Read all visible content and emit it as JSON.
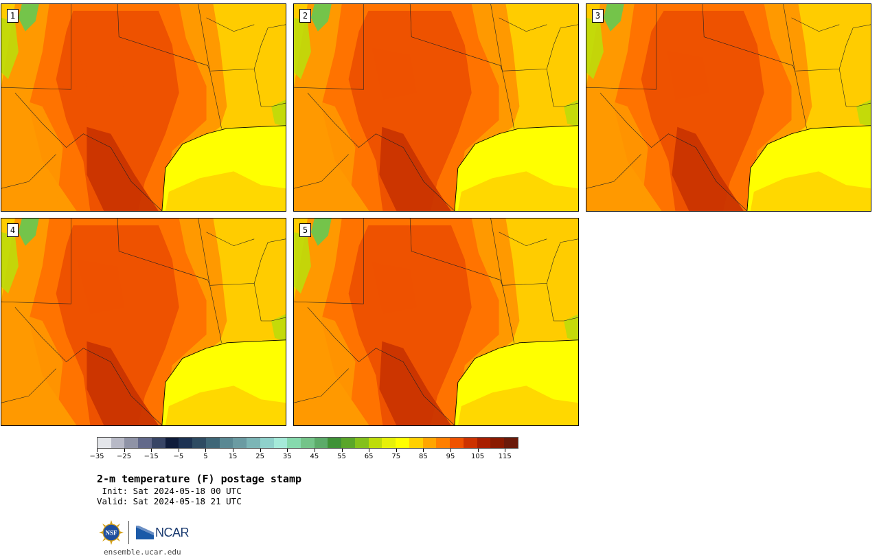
{
  "panels": [
    {
      "label": "1"
    },
    {
      "label": "2"
    },
    {
      "label": "3"
    },
    {
      "label": "4"
    },
    {
      "label": "5"
    }
  ],
  "colorbar": {
    "colors": [
      "#e4e6ea",
      "#b7b9c6",
      "#8f93a6",
      "#62698a",
      "#384565",
      "#0f1c3a",
      "#1d3252",
      "#2e4b62",
      "#3f6677",
      "#5a8893",
      "#6b9ba2",
      "#7cb5b6",
      "#8fd1cb",
      "#a5ead9",
      "#86d9ad",
      "#74c489",
      "#5cab69",
      "#3f9237",
      "#5aa62a",
      "#84c11c",
      "#bedc0a",
      "#e6f009",
      "#ffff00",
      "#ffd000",
      "#ffa500",
      "#ff7f00",
      "#ee5200",
      "#cc3200",
      "#a81f00",
      "#8a1a00",
      "#6b1a0a"
    ],
    "tick_labels": [
      "−35",
      "−25",
      "−15",
      "−5",
      "5",
      "15",
      "25",
      "35",
      "45",
      "55",
      "65",
      "75",
      "85",
      "95",
      "105",
      "115"
    ],
    "min": -35,
    "step": 5
  },
  "title": "2-m temperature (F) postage stamp",
  "init": " Init: Sat 2024-05-18 00 UTC",
  "valid": "Valid: Sat 2024-05-18 21 UTC",
  "logo_text": "NCAR",
  "nsf_text": "NSF",
  "website": "ensemble.ucar.edu",
  "map_colors": {
    "gulf": "#ffff00",
    "gulf_cool": "#ffd800",
    "warm": "#ff9900",
    "hot": "#ff7300",
    "hotter": "#ee5200",
    "hottest": "#c83200",
    "cool": "#ffcc00",
    "green": "#74c44a",
    "lime": "#bedc0a"
  }
}
